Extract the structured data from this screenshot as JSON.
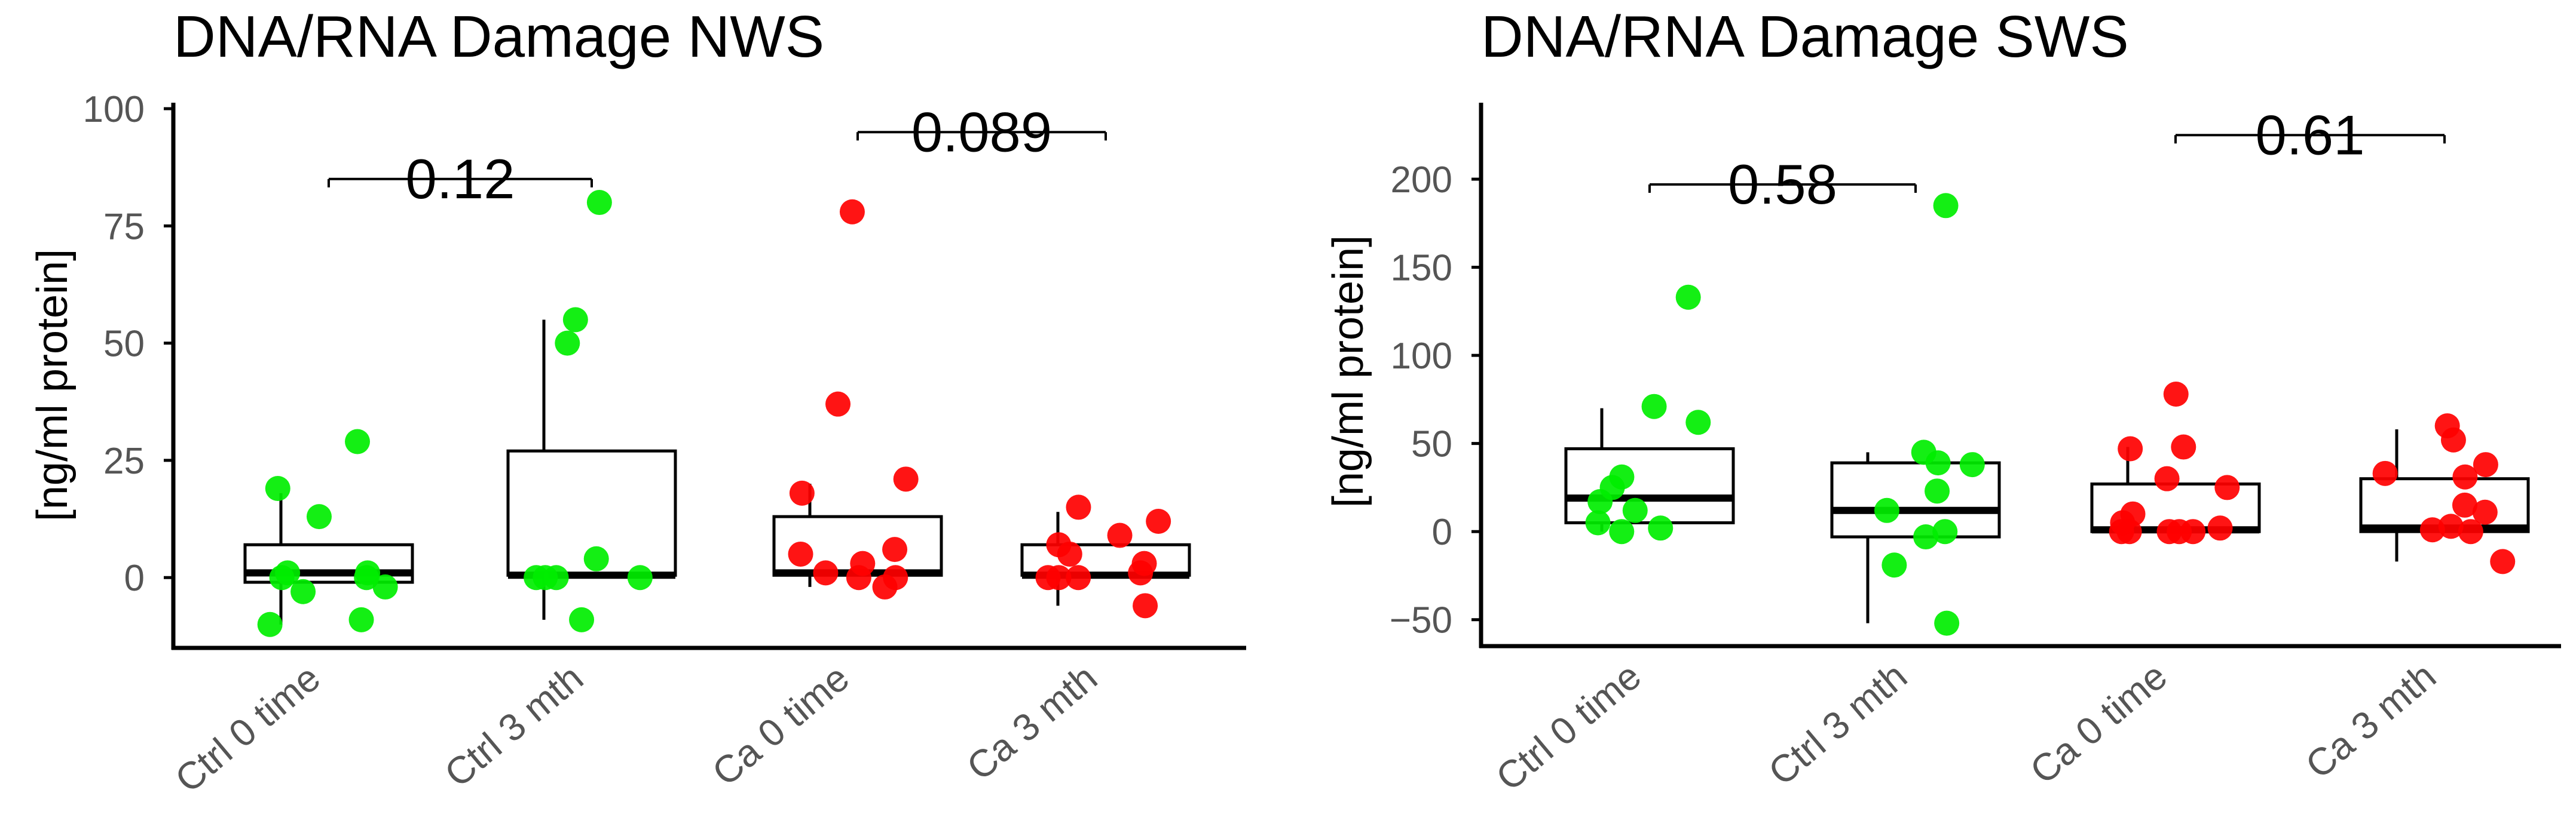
{
  "chart_data": [
    {
      "type": "box",
      "title": "DNA/RNA Damage NWS",
      "xlabel": "",
      "ylabel": "[ng/ml protein]",
      "ylim": [
        -15,
        100
      ],
      "yticks": [
        0,
        25,
        50,
        75,
        100
      ],
      "yticklabels": [
        "0",
        "25",
        "50",
        "75",
        "100"
      ],
      "categories": [
        "Ctrl 0 time",
        "Ctrl 3 mth",
        "Ca 0 time",
        "Ca 3 mth"
      ],
      "colors": [
        "#00ee00",
        "#00ee00",
        "#ff0000",
        "#ff0000"
      ],
      "boxes": [
        {
          "q1": -1,
          "median": 1,
          "q3": 7,
          "whisker_low": -10,
          "whisker_high": 18
        },
        {
          "q1": 0.5,
          "median": 0.5,
          "q3": 27,
          "whisker_low": -9,
          "whisker_high": 55
        },
        {
          "q1": 0.5,
          "median": 1,
          "q3": 13,
          "whisker_low": -2,
          "whisker_high": 20
        },
        {
          "q1": 0.5,
          "median": 0.5,
          "q3": 7,
          "whisker_low": -6,
          "whisker_high": 14
        }
      ],
      "points": [
        [
          29,
          19,
          13,
          1,
          1,
          0,
          0,
          -2,
          -3,
          -9,
          -10
        ],
        [
          80,
          55,
          50,
          4,
          0,
          0,
          0,
          0,
          -9
        ],
        [
          78,
          37,
          21,
          18,
          6,
          5,
          3,
          1,
          0,
          0,
          -2
        ],
        [
          15,
          12,
          9,
          7,
          5,
          3,
          1,
          0,
          0,
          0,
          -6
        ]
      ],
      "comparisons": [
        {
          "from": "Ctrl 0 time",
          "to": "Ctrl 3 mth",
          "label": "0.12",
          "y": 85
        },
        {
          "from": "Ca 0 time",
          "to": "Ca 3 mth",
          "label": "0.089",
          "y": 95
        }
      ]
    },
    {
      "type": "box",
      "title": "DNA/RNA Damage SWS",
      "xlabel": "",
      "ylabel": "[ng/ml protein]",
      "ylim": [
        -65,
        240
      ],
      "yticks": [
        -50,
        0,
        50,
        100,
        150,
        200
      ],
      "yticklabels": [
        "−50",
        "0",
        "50",
        "100",
        "150",
        "200"
      ],
      "categories": [
        "Ctrl 0 time",
        "Ctrl 3 mth",
        "Ca 0 time",
        "Ca 3 mth"
      ],
      "colors": [
        "#00ee00",
        "#00ee00",
        "#ff0000",
        "#ff0000"
      ],
      "boxes": [
        {
          "q1": 5,
          "median": 19,
          "q3": 47,
          "whisker_low": 0,
          "whisker_high": 70
        },
        {
          "q1": -3,
          "median": 12,
          "q3": 39,
          "whisker_low": -52,
          "whisker_high": 45
        },
        {
          "q1": 0,
          "median": 1,
          "q3": 27,
          "whisker_low": 0,
          "whisker_high": 48
        },
        {
          "q1": 0,
          "median": 2,
          "q3": 30,
          "whisker_low": -17,
          "whisker_high": 58
        }
      ],
      "points": [
        [
          133,
          71,
          62,
          31,
          25,
          17,
          12,
          5,
          2,
          0
        ],
        [
          185,
          45,
          39,
          38,
          23,
          12,
          0,
          -3,
          -19,
          -52
        ],
        [
          78,
          48,
          47,
          30,
          25,
          10,
          5,
          2,
          0,
          0,
          0,
          0,
          0
        ],
        [
          60,
          52,
          38,
          33,
          31,
          15,
          11,
          3,
          1,
          0,
          -17
        ]
      ],
      "comparisons": [
        {
          "from": "Ctrl 0 time",
          "to": "Ctrl 3 mth",
          "label": "0.58",
          "y": 197
        },
        {
          "from": "Ca 0 time",
          "to": "Ca 3 mth",
          "label": "0.61",
          "y": 225
        }
      ]
    }
  ]
}
